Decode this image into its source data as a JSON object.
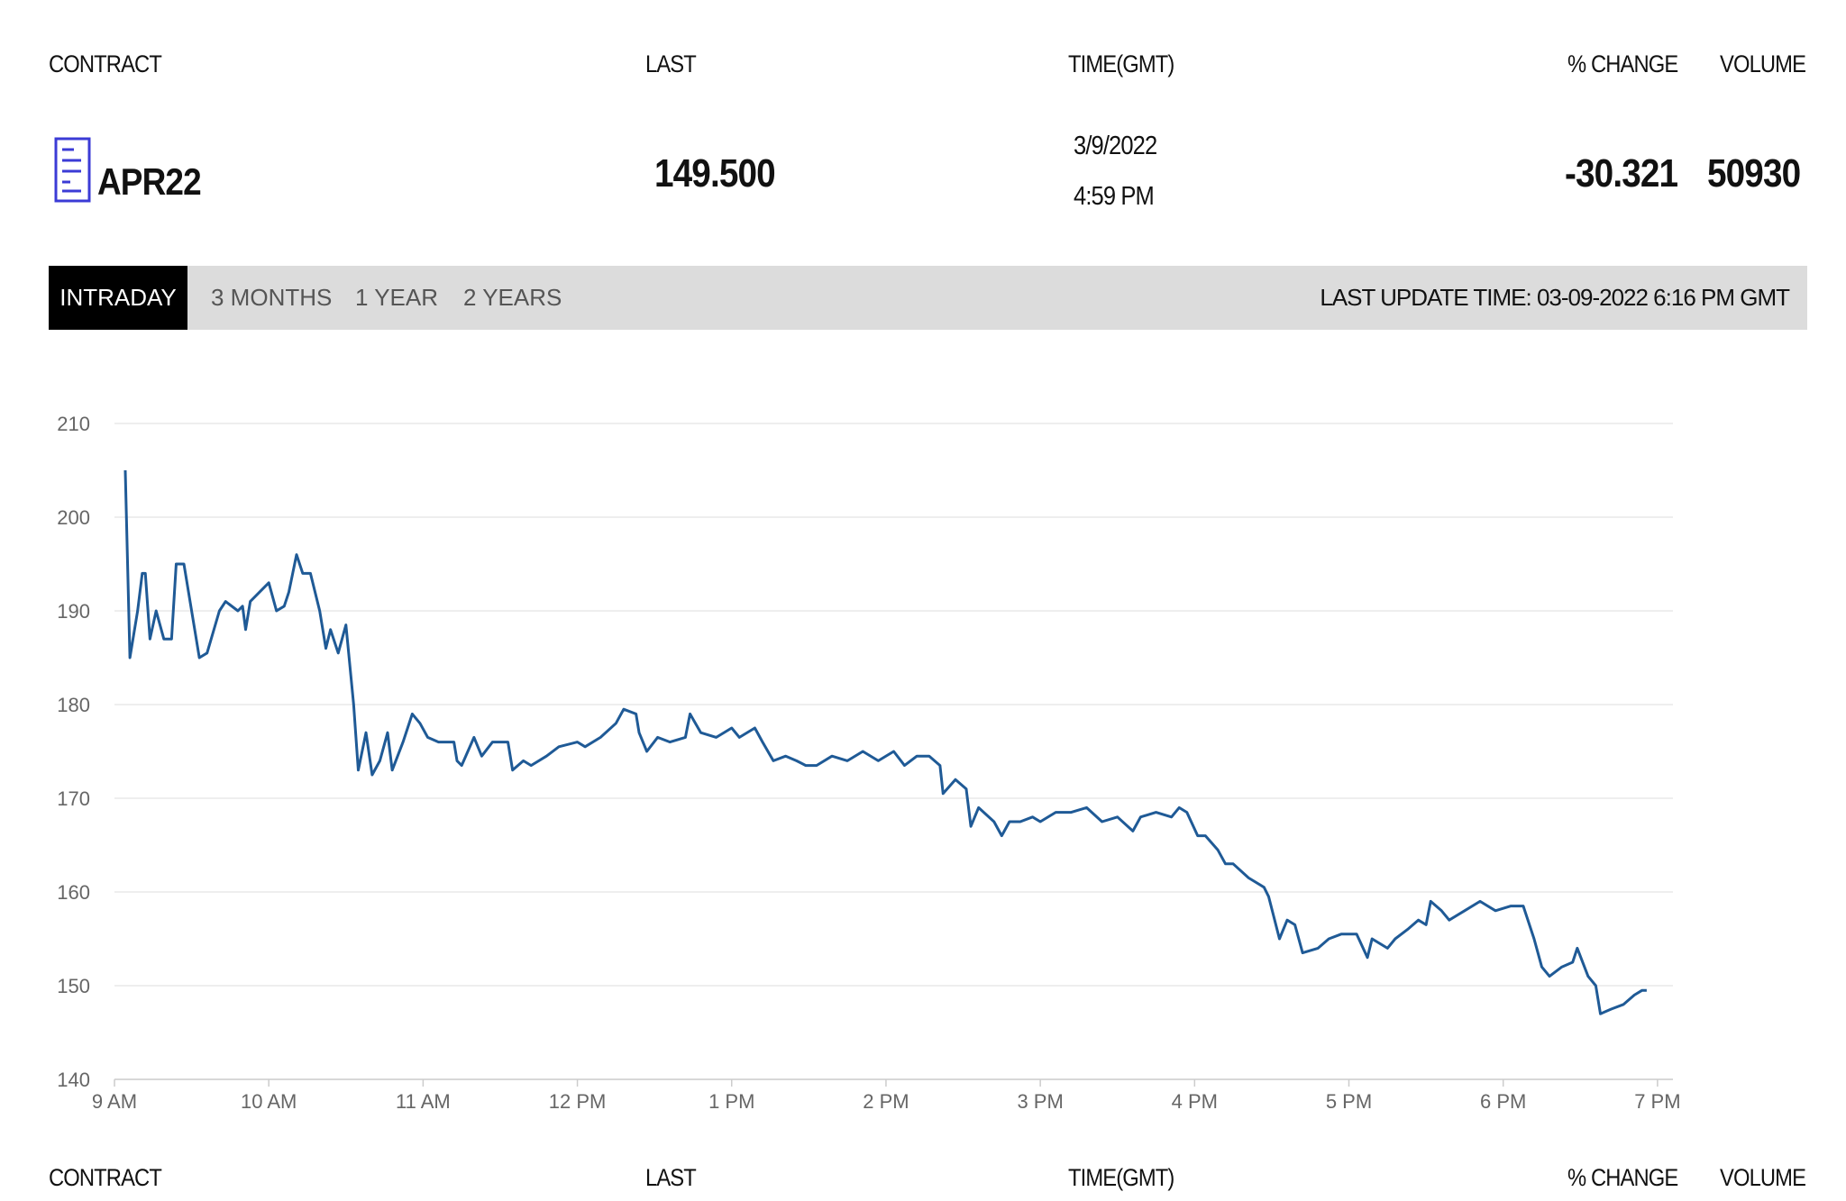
{
  "header": {
    "columns": [
      "CONTRACT",
      "LAST",
      "TIME(GMT)",
      "% CHANGE",
      "VOLUME"
    ]
  },
  "quote": {
    "contract": "APR22",
    "last": "149.500",
    "date": "3/9/2022",
    "time": "4:59 PM",
    "change": "-30.321",
    "volume": "50930"
  },
  "tabs": [
    "INTRADAY",
    "3 MONTHS",
    "1 YEAR",
    "2 YEARS"
  ],
  "last_update": "LAST UPDATE TIME: 03-09-2022 6:16 PM GMT",
  "chart_data": {
    "type": "line",
    "x": [
      9.07,
      9.1,
      9.15,
      9.18,
      9.2,
      9.23,
      9.27,
      9.32,
      9.37,
      9.4,
      9.45,
      9.5,
      9.55,
      9.6,
      9.68,
      9.72,
      9.8,
      9.83,
      9.85,
      9.88,
      10.0,
      10.05,
      10.1,
      10.13,
      10.18,
      10.22,
      10.27,
      10.33,
      10.37,
      10.4,
      10.45,
      10.5,
      10.55,
      10.58,
      10.63,
      10.67,
      10.72,
      10.77,
      10.8,
      10.87,
      10.93,
      10.98,
      11.03,
      11.1,
      11.2,
      11.22,
      11.25,
      11.33,
      11.38,
      11.45,
      11.55,
      11.58,
      11.65,
      11.7,
      11.8,
      11.88,
      12.0,
      12.05,
      12.15,
      12.25,
      12.3,
      12.38,
      12.4,
      12.45,
      12.52,
      12.6,
      12.7,
      12.73,
      12.8,
      12.9,
      13.0,
      13.05,
      13.15,
      13.2,
      13.27,
      13.35,
      13.42,
      13.48,
      13.55,
      13.65,
      13.75,
      13.85,
      13.95,
      14.05,
      14.12,
      14.2,
      14.28,
      14.35,
      14.37,
      14.45,
      14.52,
      14.55,
      14.6,
      14.7,
      14.75,
      14.8,
      14.87,
      14.95,
      15.0,
      15.1,
      15.2,
      15.3,
      15.4,
      15.5,
      15.6,
      15.65,
      15.75,
      15.85,
      15.9,
      15.95,
      16.02,
      16.07,
      16.15,
      16.2,
      16.25,
      16.35,
      16.45,
      16.48,
      16.55,
      16.6,
      16.65,
      16.7,
      16.8,
      16.87,
      16.95,
      17.05,
      17.12,
      17.15,
      17.25,
      17.3,
      17.38,
      17.45,
      17.5,
      17.53,
      17.6,
      17.65,
      17.75,
      17.85,
      17.95,
      18.05,
      18.13,
      18.2,
      18.25,
      18.3,
      18.38,
      18.45,
      18.48,
      18.55,
      18.6,
      18.63,
      18.7,
      18.78,
      18.85,
      18.9,
      18.93
    ],
    "series": [
      {
        "color": "#1f5a96",
        "values": [
          205,
          185,
          190,
          194,
          194,
          187,
          190,
          187,
          187,
          195,
          195,
          190,
          185,
          185.5,
          190,
          191,
          190,
          190.5,
          188,
          191,
          193,
          190,
          190.5,
          192,
          196,
          194,
          194,
          190,
          186,
          188,
          185.5,
          188.5,
          180,
          173,
          177,
          172.5,
          174,
          177,
          173,
          176,
          179,
          178,
          176.5,
          176,
          176,
          174,
          173.5,
          176.5,
          174.5,
          176,
          176,
          173,
          174,
          173.5,
          174.5,
          175.5,
          176,
          175.5,
          176.5,
          178,
          179.5,
          179,
          177,
          175,
          176.5,
          176,
          176.5,
          179,
          177,
          176.5,
          177.5,
          176.5,
          177.5,
          176,
          174,
          174.5,
          174,
          173.5,
          173.5,
          174.5,
          174,
          175,
          174,
          175,
          173.5,
          174.5,
          174.5,
          173.5,
          170.5,
          172,
          171,
          167,
          169,
          167.5,
          166,
          167.5,
          167.5,
          168,
          167.5,
          168.5,
          168.5,
          169,
          167.5,
          168,
          166.5,
          168,
          168.5,
          168,
          169,
          168.5,
          166,
          166,
          164.5,
          163,
          163,
          161.5,
          160.5,
          159.5,
          155,
          157,
          156.5,
          153.5,
          154,
          155,
          155.5,
          155.5,
          153,
          155,
          154,
          155,
          156,
          157,
          156.5,
          159,
          158,
          157,
          158,
          159,
          158,
          158.5,
          158.5,
          155,
          152,
          151,
          152,
          152.5,
          154,
          151,
          150,
          147,
          147.5,
          148,
          149,
          149.5,
          149.5
        ]
      }
    ],
    "xlim": [
      9,
      19.1
    ],
    "xticks": [
      {
        "value": 9,
        "label": "9 AM"
      },
      {
        "value": 10,
        "label": "10 AM"
      },
      {
        "value": 11,
        "label": "11 AM"
      },
      {
        "value": 12,
        "label": "12 PM"
      },
      {
        "value": 13,
        "label": "1 PM"
      },
      {
        "value": 14,
        "label": "2 PM"
      },
      {
        "value": 15,
        "label": "3 PM"
      },
      {
        "value": 16,
        "label": "4 PM"
      },
      {
        "value": 17,
        "label": "5 PM"
      },
      {
        "value": 18,
        "label": "6 PM"
      },
      {
        "value": 19,
        "label": "7 PM"
      }
    ],
    "ylim": [
      140,
      210
    ],
    "yticks": [
      140,
      150,
      160,
      170,
      180,
      190,
      200,
      210
    ],
    "grid": true
  }
}
